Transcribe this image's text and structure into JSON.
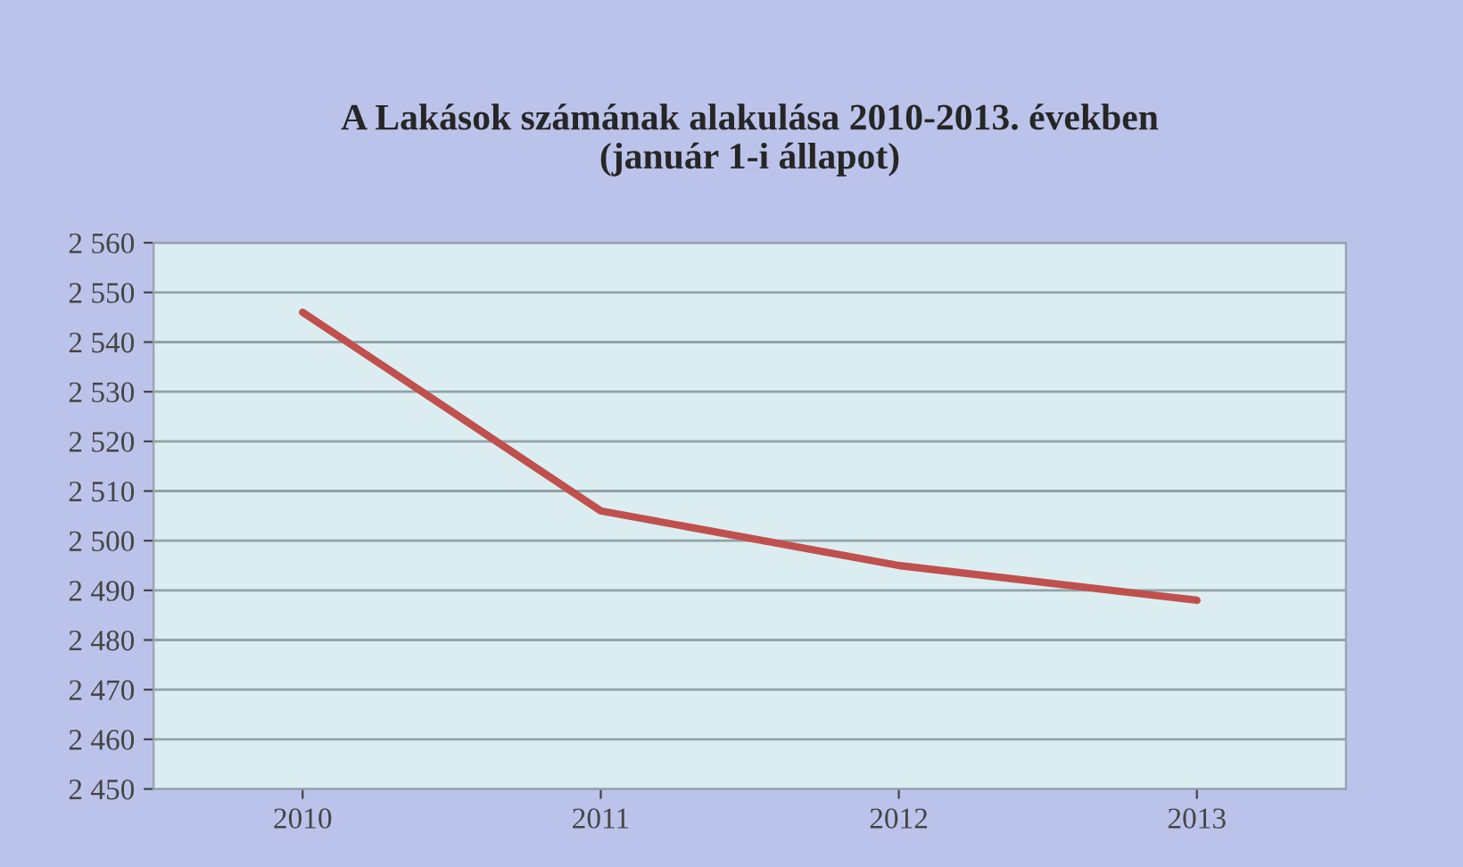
{
  "chart_data": {
    "type": "line",
    "title": "A Lakások számának alakulása 2010-2013. években\n(január 1-i állapot)",
    "categories": [
      "2010",
      "2011",
      "2012",
      "2013"
    ],
    "series": [
      {
        "color": "#c0504d",
        "values": [
          2546,
          2506,
          2495,
          2488
        ]
      }
    ],
    "ylim": [
      2450,
      2560
    ],
    "yticks": [
      {
        "value": 2450,
        "label": "2 450"
      },
      {
        "value": 2460,
        "label": "2 460"
      },
      {
        "value": 2470,
        "label": "2 470"
      },
      {
        "value": 2480,
        "label": "2 480"
      },
      {
        "value": 2490,
        "label": "2 490"
      },
      {
        "value": 2500,
        "label": "2 500"
      },
      {
        "value": 2510,
        "label": "2 510"
      },
      {
        "value": 2520,
        "label": "2 520"
      },
      {
        "value": 2530,
        "label": "2 530"
      },
      {
        "value": 2540,
        "label": "2 540"
      },
      {
        "value": 2550,
        "label": "2 550"
      },
      {
        "value": 2560,
        "label": "2 560"
      }
    ],
    "grid": "y",
    "marker": "none",
    "line_style": "solid"
  }
}
